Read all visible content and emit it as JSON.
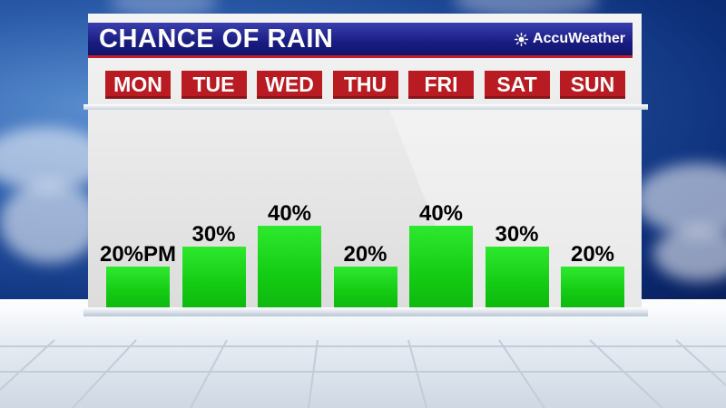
{
  "title": "CHANCE OF RAIN",
  "brand": {
    "name": "AccuWeather",
    "icon": "sun-icon"
  },
  "colors": {
    "title_bar": "#191c80",
    "day_label": "#b81c22",
    "bar": "#14cc14"
  },
  "chart_data": {
    "type": "bar",
    "title": "CHANCE OF RAIN",
    "categories": [
      "MON",
      "TUE",
      "WED",
      "THU",
      "FRI",
      "SAT",
      "SUN"
    ],
    "values": [
      20,
      30,
      40,
      20,
      40,
      30,
      20
    ],
    "labels": [
      "20%PM",
      "30%",
      "40%",
      "20%",
      "40%",
      "30%",
      "20%"
    ],
    "unit": "%",
    "ylim": [
      0,
      100
    ],
    "grid": false,
    "legend": "none"
  }
}
